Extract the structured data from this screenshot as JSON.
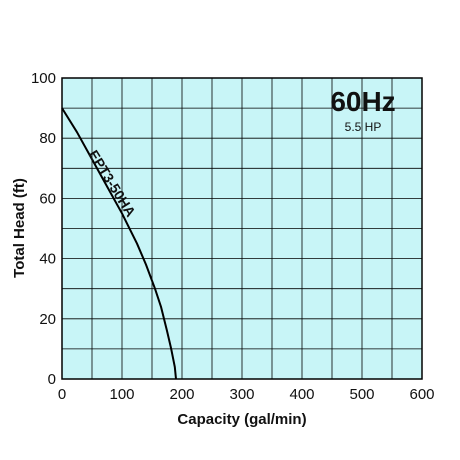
{
  "chart_data": {
    "type": "line",
    "title": "",
    "xlabel": "Capacity (gal/min)",
    "ylabel": "Total Head (ft)",
    "xlim": [
      0,
      600
    ],
    "ylim": [
      0,
      100
    ],
    "x_ticks": [
      0,
      100,
      200,
      300,
      400,
      500,
      600
    ],
    "y_ticks": [
      0,
      20,
      40,
      60,
      80,
      100
    ],
    "grid": true,
    "background_color": "#c8f5f7",
    "line_color": "#000000",
    "frequency_label": "60Hz",
    "power_label": "5.5 HP",
    "series": [
      {
        "name": "EPT3-50HA",
        "x": [
          0,
          25,
          50,
          75,
          100,
          125,
          140,
          155,
          165,
          175,
          182,
          188,
          190
        ],
        "y": [
          90,
          82,
          73,
          64,
          55,
          45,
          38,
          30,
          24,
          16,
          10,
          4,
          0
        ]
      }
    ]
  }
}
